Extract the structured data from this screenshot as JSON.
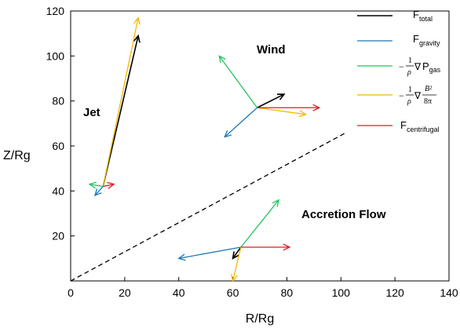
{
  "colors": {
    "total": "#000000",
    "gravity": "#1f77b4",
    "pressure": "#22c55e",
    "magnetic": "#f5b800",
    "centrifugal": "#e8141e"
  },
  "axes": {
    "xlabel": "R/Rg",
    "ylabel": "Z/Rg",
    "xlim": [
      0,
      140
    ],
    "ylim": [
      0,
      120
    ],
    "xticks": [
      "0",
      "20",
      "40",
      "60",
      "80",
      "100",
      "120",
      "140"
    ],
    "yticks": [
      "20",
      "40",
      "60",
      "80",
      "100",
      "120"
    ]
  },
  "regions": {
    "jet": "Jet",
    "wind": "Wind",
    "accretion": "Accretion Flow"
  },
  "legend": {
    "total": {
      "main": "F",
      "sub": "total"
    },
    "gravity": {
      "main": "F",
      "sub": "gravity"
    },
    "pressure": {
      "minus": "−",
      "num": "1",
      "den": "ρ",
      "nabla": "∇",
      "main": "P",
      "sub": "gas"
    },
    "magnetic": {
      "minus": "−",
      "num": "1",
      "den": "ρ",
      "nabla": "∇",
      "bnum": "B²",
      "bden": "8π"
    },
    "centrifugal": {
      "main": "F",
      "sub": "centrifugal"
    }
  },
  "boundary_line": {
    "from": [
      0,
      0
    ],
    "to": [
      102,
      66
    ],
    "style": "dashed"
  },
  "force_points": [
    {
      "name": "jet",
      "origin": [
        12,
        42
      ],
      "arrows": [
        {
          "force": "total",
          "to": [
            25,
            109
          ]
        },
        {
          "force": "magnetic",
          "to": [
            25,
            117
          ]
        },
        {
          "force": "gravity",
          "to": [
            9,
            38
          ]
        },
        {
          "force": "pressure",
          "to": [
            7,
            43
          ]
        },
        {
          "force": "centrifugal",
          "to": [
            16,
            43
          ]
        }
      ]
    },
    {
      "name": "wind",
      "origin": [
        69,
        77
      ],
      "arrows": [
        {
          "force": "total",
          "to": [
            79,
            83
          ]
        },
        {
          "force": "gravity",
          "to": [
            57,
            64
          ]
        },
        {
          "force": "pressure",
          "to": [
            55,
            100
          ]
        },
        {
          "force": "magnetic",
          "to": [
            87,
            74
          ]
        },
        {
          "force": "centrifugal",
          "to": [
            92,
            77
          ]
        }
      ]
    },
    {
      "name": "accretion",
      "origin": [
        63,
        15
      ],
      "arrows": [
        {
          "force": "total",
          "to": [
            60,
            10
          ]
        },
        {
          "force": "gravity",
          "to": [
            40,
            10
          ]
        },
        {
          "force": "pressure",
          "to": [
            77,
            36
          ]
        },
        {
          "force": "magnetic",
          "to": [
            60,
            0
          ]
        },
        {
          "force": "centrifugal",
          "to": [
            81,
            15
          ]
        }
      ]
    }
  ]
}
